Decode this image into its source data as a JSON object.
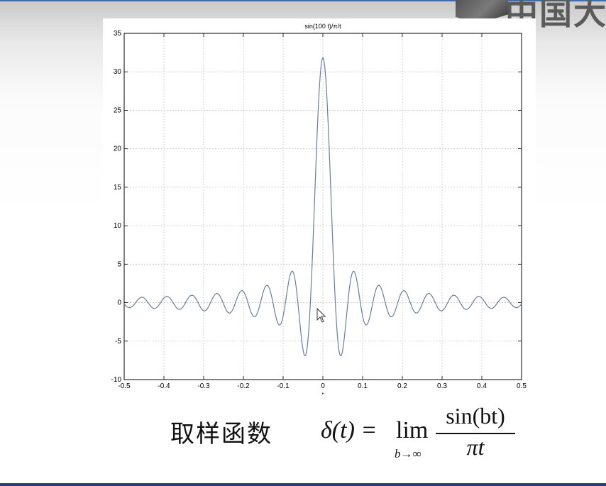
{
  "header": {
    "logo_text": "中国大"
  },
  "chart_data": {
    "type": "line",
    "title": "sin(100 t)/π/t",
    "xlabel": "t",
    "ylabel": "",
    "xlim": [
      -0.5,
      0.5
    ],
    "ylim": [
      -10,
      35
    ],
    "x_ticks": [
      -0.5,
      -0.4,
      -0.3,
      -0.2,
      -0.1,
      0,
      0.1,
      0.2,
      0.3,
      0.4,
      0.5
    ],
    "x_tick_labels": [
      "-0.5",
      "-0.4",
      "-0.3",
      "-0.2",
      "-0.1",
      "0",
      "0.1",
      "0.2",
      "0.3",
      "0.4",
      "0.5"
    ],
    "y_ticks": [
      -10,
      -5,
      0,
      5,
      10,
      15,
      20,
      25,
      30,
      35
    ],
    "y_tick_labels": [
      "-10",
      "-5",
      "0",
      "5",
      "10",
      "15",
      "20",
      "25",
      "30",
      "35"
    ],
    "grid": true,
    "series": [
      {
        "function": "sin(100 t)/(π t)",
        "color": "#6b7d98",
        "peak": 31.83
      }
    ]
  },
  "caption": {
    "label": "取样函数",
    "formula_lhs": "δ(t) =",
    "formula_lim": "lim",
    "formula_subscript": "b→∞",
    "formula_numerator": "sin(bt)",
    "formula_denominator": "πt"
  }
}
